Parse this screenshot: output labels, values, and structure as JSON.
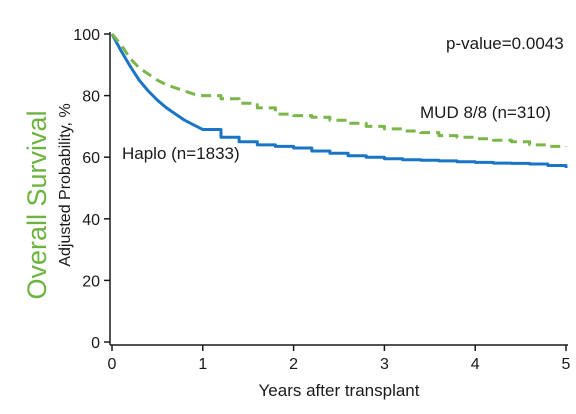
{
  "chart_data": {
    "type": "line",
    "side_title": "Overall Survival",
    "ylabel": "Adjusted Probability, %",
    "xlabel": "Years after transplant",
    "xlim": [
      0,
      5
    ],
    "ylim": [
      0,
      100
    ],
    "x_ticks": [
      "0",
      "1",
      "2",
      "3",
      "4",
      "5"
    ],
    "y_ticks": [
      "0",
      "20",
      "40",
      "60",
      "80",
      "100"
    ],
    "p_value_label": "p-value=0.0043",
    "grid": false,
    "colors": {
      "haplo": "#1b75c7",
      "mud": "#7ab648",
      "side_title": "#6cb33f"
    },
    "series": [
      {
        "name": "Haplo (n=1833)",
        "style": "solid",
        "x": [
          0,
          0.1,
          0.2,
          0.3,
          0.4,
          0.5,
          0.6,
          0.7,
          0.8,
          0.9,
          1.0,
          1.2,
          1.4,
          1.6,
          1.8,
          2.0,
          2.2,
          2.4,
          2.6,
          2.8,
          3.0,
          3.2,
          3.4,
          3.6,
          3.8,
          4.0,
          4.2,
          4.4,
          4.6,
          4.8,
          5.0
        ],
        "values": [
          100,
          94.5,
          89.5,
          85,
          81.5,
          78.5,
          76,
          74,
          72,
          70.5,
          69,
          66.5,
          65,
          64,
          63.5,
          63,
          62,
          61.3,
          60.5,
          60,
          59.5,
          59.2,
          59,
          58.8,
          58.5,
          58.3,
          58.1,
          58,
          57.8,
          57.3,
          56.5
        ]
      },
      {
        "name": "MUD 8/8 (n=310)",
        "style": "dashed",
        "x": [
          0,
          0.1,
          0.2,
          0.3,
          0.4,
          0.5,
          0.6,
          0.7,
          0.8,
          0.9,
          1.0,
          1.2,
          1.4,
          1.6,
          1.8,
          2.0,
          2.2,
          2.4,
          2.6,
          2.8,
          3.0,
          3.2,
          3.4,
          3.6,
          3.8,
          4.0,
          4.2,
          4.4,
          4.6,
          4.8,
          5.0
        ],
        "values": [
          100,
          96.5,
          92,
          89,
          87,
          85,
          83.5,
          82.5,
          81.5,
          80.5,
          80,
          79,
          77.5,
          76,
          74,
          73.5,
          73,
          72,
          71,
          70,
          69.2,
          68.5,
          68,
          67,
          66.5,
          66,
          65.5,
          65,
          64,
          63.5,
          63.3
        ]
      }
    ]
  }
}
